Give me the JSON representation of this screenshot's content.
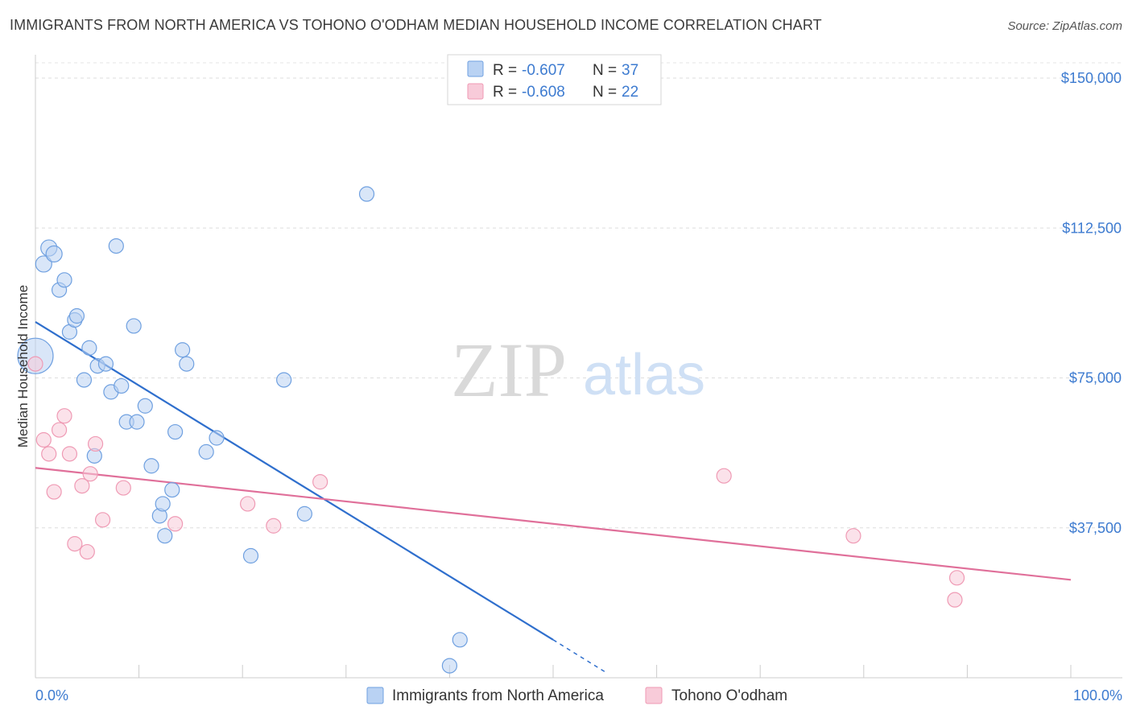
{
  "title": "IMMIGRANTS FROM NORTH AMERICA VS TOHONO O'ODHAM MEDIAN HOUSEHOLD INCOME CORRELATION CHART",
  "source": "Source: ZipAtlas.com",
  "watermark": {
    "zip": "ZIP",
    "atlas": "atlas"
  },
  "chart_data": {
    "type": "scatter",
    "ylabel": "Median Household Income",
    "xlim": [
      0,
      100
    ],
    "ylim": [
      0,
      150000
    ],
    "x_tick_labels": {
      "min": "0.0%",
      "max": "100.0%"
    },
    "y_ticks": [
      {
        "value": 37500,
        "label": "$37,500"
      },
      {
        "value": 75000,
        "label": "$75,000"
      },
      {
        "value": 112500,
        "label": "$112,500"
      },
      {
        "value": 150000,
        "label": "$150,000"
      }
    ],
    "legend": [
      {
        "r_label": "R = ",
        "r_value": "-0.607",
        "n_label": "N = ",
        "n_value": "37"
      },
      {
        "r_label": "R = ",
        "r_value": "-0.608",
        "n_label": "N = ",
        "n_value": "22"
      }
    ],
    "series": [
      {
        "name": "Immigrants from North America",
        "color": "#6fa0e0",
        "fill": "#b9d2f3",
        "trend_color": "#2f6fcd",
        "trend": {
          "x0": 0,
          "y0": 89000,
          "x1": 50,
          "y1": 9500,
          "dash_to_x": 55,
          "dash_to_y": 1500
        },
        "points": [
          [
            0,
            80500,
            22
          ],
          [
            0.8,
            103500,
            10
          ],
          [
            1.3,
            107500,
            10
          ],
          [
            1.8,
            106000,
            10
          ],
          [
            2.3,
            97000,
            9
          ],
          [
            2.8,
            99500,
            9
          ],
          [
            3.3,
            86500,
            9
          ],
          [
            3.8,
            89500,
            9
          ],
          [
            4.0,
            90500,
            9
          ],
          [
            4.7,
            74500,
            9
          ],
          [
            5.2,
            82500,
            9
          ],
          [
            5.7,
            55500,
            9
          ],
          [
            6.0,
            78000,
            9
          ],
          [
            6.8,
            78500,
            9
          ],
          [
            7.3,
            71500,
            9
          ],
          [
            7.8,
            108000,
            9
          ],
          [
            8.3,
            73000,
            9
          ],
          [
            8.8,
            64000,
            9
          ],
          [
            9.5,
            88000,
            9
          ],
          [
            9.8,
            64000,
            9
          ],
          [
            10.6,
            68000,
            9
          ],
          [
            11.2,
            53000,
            9
          ],
          [
            12.0,
            40500,
            9
          ],
          [
            12.3,
            43500,
            9
          ],
          [
            12.5,
            35500,
            9
          ],
          [
            13.2,
            47000,
            9
          ],
          [
            13.5,
            61500,
            9
          ],
          [
            14.2,
            82000,
            9
          ],
          [
            14.6,
            78500,
            9
          ],
          [
            16.5,
            56500,
            9
          ],
          [
            17.5,
            60000,
            9
          ],
          [
            20.8,
            30500,
            9
          ],
          [
            24.0,
            74500,
            9
          ],
          [
            26.0,
            41000,
            9
          ],
          [
            32.0,
            121000,
            9
          ],
          [
            41.0,
            9500,
            9
          ],
          [
            40.0,
            3000,
            9
          ]
        ]
      },
      {
        "name": "Tohono O'odham",
        "color": "#ef9ab4",
        "fill": "#f8cbd9",
        "trend_color": "#e0709a",
        "trend": {
          "x0": 0,
          "y0": 52500,
          "x1": 100,
          "y1": 24500
        },
        "points": [
          [
            0,
            78500,
            9
          ],
          [
            0.8,
            59500,
            9
          ],
          [
            1.3,
            56000,
            9
          ],
          [
            1.8,
            46500,
            9
          ],
          [
            2.3,
            62000,
            9
          ],
          [
            2.8,
            65500,
            9
          ],
          [
            3.3,
            56000,
            9
          ],
          [
            3.8,
            33500,
            9
          ],
          [
            4.5,
            48000,
            9
          ],
          [
            5.0,
            31500,
            9
          ],
          [
            5.3,
            51000,
            9
          ],
          [
            5.8,
            58500,
            9
          ],
          [
            6.5,
            39500,
            9
          ],
          [
            8.5,
            47500,
            9
          ],
          [
            13.5,
            38500,
            9
          ],
          [
            20.5,
            43500,
            9
          ],
          [
            23.0,
            38000,
            9
          ],
          [
            27.5,
            49000,
            9
          ],
          [
            66.5,
            50500,
            9
          ],
          [
            79.0,
            35500,
            9
          ],
          [
            89.0,
            25000,
            9
          ],
          [
            88.8,
            19500,
            9
          ]
        ]
      }
    ]
  }
}
